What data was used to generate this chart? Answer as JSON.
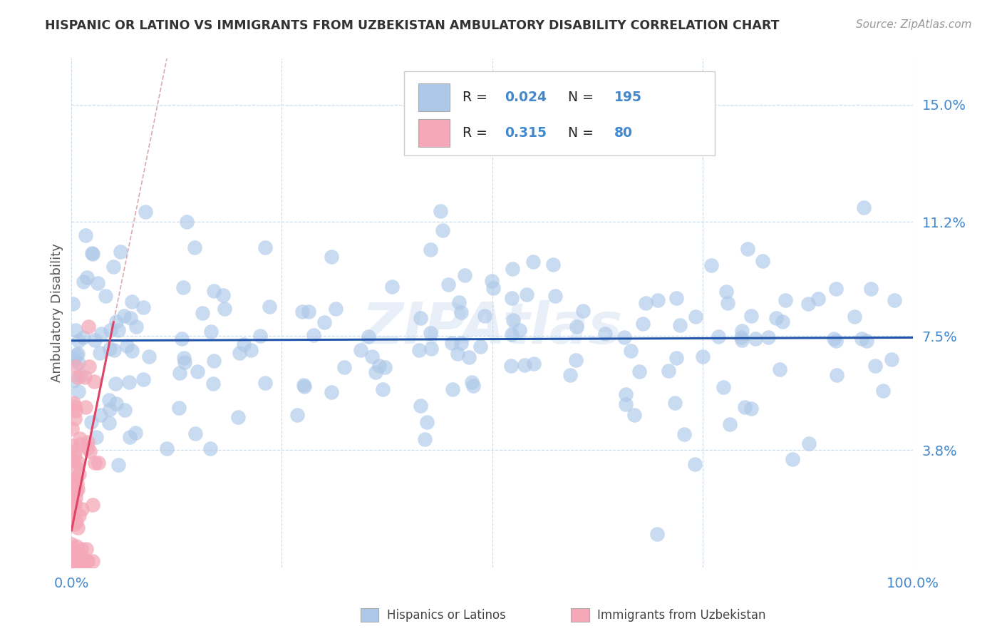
{
  "title": "HISPANIC OR LATINO VS IMMIGRANTS FROM UZBEKISTAN AMBULATORY DISABILITY CORRELATION CHART",
  "source_text": "Source: ZipAtlas.com",
  "ylabel": "Ambulatory Disability",
  "watermark": "ZIPAtlas",
  "legend_label_blue": "Hispanics or Latinos",
  "legend_label_pink": "Immigrants from Uzbekistan",
  "R_blue": 0.024,
  "N_blue": 195,
  "R_pink": 0.315,
  "N_pink": 80,
  "xlim": [
    0,
    100
  ],
  "ylim": [
    0,
    16.5
  ],
  "yticks": [
    0,
    3.8,
    7.5,
    11.2,
    15.0
  ],
  "ytick_labels": [
    "",
    "3.8%",
    "7.5%",
    "11.2%",
    "15.0%"
  ],
  "xtick_labels": [
    "0.0%",
    "100.0%"
  ],
  "blue_color": "#adc8e8",
  "blue_edge_color": "#7aaad0",
  "blue_line_color": "#2255aa",
  "pink_color": "#f4a8b8",
  "pink_edge_color": "#e07090",
  "pink_line_color": "#dd4466",
  "pink_dash_color": "#ddaaaa",
  "title_color": "#333333",
  "axis_label_color": "#4488cc",
  "grid_color": "#c8daea",
  "background_color": "#ffffff",
  "legend_text_color": "#4488cc",
  "blue_regression_intercept": 7.35,
  "blue_regression_slope": 0.001,
  "pink_regression_intercept": 1.2,
  "pink_regression_slope": 1.35
}
